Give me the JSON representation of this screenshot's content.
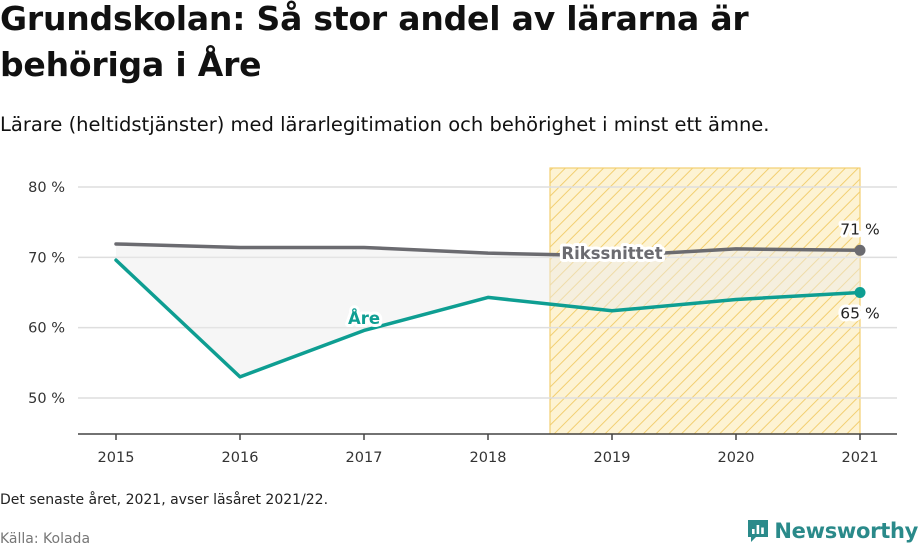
{
  "header": {
    "title": "Grundskolan: Så stor andel av lärarna är behöriga i Åre",
    "subtitle": "Lärare (heltidstjänster) med lärarlegitimation och behörighet i minst ett ämne."
  },
  "footer": {
    "note": "Det senaste året, 2021, avser läsåret 2021/22.",
    "source": "Källa: Kolada",
    "brand": "Newsworthy"
  },
  "colors": {
    "are": "#0e9e92",
    "riks": "#6b6b70",
    "highlight_fill": "#fdf3d3",
    "highlight_stripe": "#f2cf72",
    "gap_fill": "#ececec",
    "brand": "#2a8a8a"
  },
  "chart_data": {
    "type": "line",
    "x": [
      2015,
      2016,
      2017,
      2018,
      2019,
      2020,
      2021
    ],
    "ylim": [
      45,
      82
    ],
    "yticks": [
      50,
      60,
      70,
      80
    ],
    "ytick_labels": [
      "50 %",
      "60 %",
      "70 %",
      "80 %"
    ],
    "xtick_labels": [
      "2015",
      "2016",
      "2017",
      "2018",
      "2019",
      "2020",
      "2021"
    ],
    "highlight_range": [
      2018.5,
      2021
    ],
    "series": [
      {
        "name": "Rikssnittet",
        "values": [
          71.9,
          71.4,
          71.4,
          70.6,
          70.2,
          71.2,
          71.0
        ],
        "end_label": "71 %"
      },
      {
        "name": "Åre",
        "values": [
          69.6,
          53.0,
          59.6,
          64.3,
          62.4,
          64.0,
          65.0
        ],
        "end_label": "65 %"
      }
    ],
    "grid": true,
    "legend": "inline labels"
  }
}
